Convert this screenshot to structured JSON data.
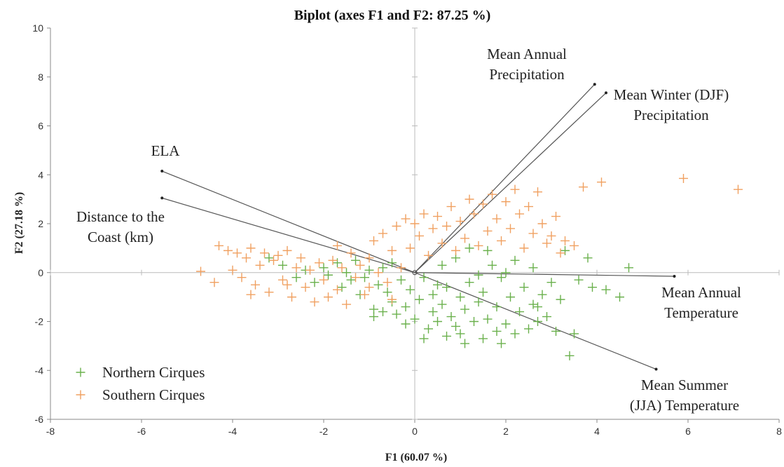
{
  "chart_data": {
    "type": "scatter",
    "title": "Biplot (axes F1 and F2: 87.25 %)",
    "xlabel": "F1 (60.07 %)",
    "ylabel": "F2 (27.18 %)",
    "xlim": [
      -8,
      8
    ],
    "ylim": [
      -6,
      10
    ],
    "xticks": [
      -8,
      -6,
      -4,
      -2,
      0,
      2,
      4,
      6,
      8
    ],
    "yticks": [
      -6,
      -4,
      -2,
      0,
      2,
      4,
      6,
      8,
      10
    ],
    "colors": {
      "northern": "#6ab04c",
      "southern": "#f0a060",
      "vector": "#555555"
    },
    "legend": {
      "placement": "bottom-left",
      "entries": [
        {
          "name": "Northern Cirques",
          "color": "#6ab04c"
        },
        {
          "name": "Southern Cirques",
          "color": "#f0a060"
        }
      ]
    },
    "vectors": [
      {
        "lines": [
          "Mean Annual",
          "Precipitation"
        ],
        "x": 3.95,
        "y": 7.7
      },
      {
        "lines": [
          "Mean Winter (DJF)",
          "Precipitation"
        ],
        "x": 4.2,
        "y": 7.35
      },
      {
        "lines": [
          "ELA"
        ],
        "x": -5.55,
        "y": 4.15
      },
      {
        "lines": [
          "Distance to the",
          "Coast (km)"
        ],
        "x": -5.55,
        "y": 3.05
      },
      {
        "lines": [
          "Mean Annual",
          "Temperature"
        ],
        "x": 5.7,
        "y": -0.15
      },
      {
        "lines": [
          "Mean Summer",
          "(JJA) Temperature"
        ],
        "x": 5.3,
        "y": -3.95
      }
    ],
    "series": [
      {
        "name": "Northern Cirques",
        "points": [
          [
            -3.2,
            0.6
          ],
          [
            -2.9,
            0.3
          ],
          [
            -2.6,
            -0.2
          ],
          [
            -2.4,
            0.1
          ],
          [
            -2.2,
            -0.4
          ],
          [
            -2.0,
            0.2
          ],
          [
            -1.9,
            -0.1
          ],
          [
            -1.7,
            0.4
          ],
          [
            -1.6,
            -0.6
          ],
          [
            -1.5,
            0.0
          ],
          [
            -1.4,
            -0.3
          ],
          [
            -1.3,
            0.5
          ],
          [
            -1.2,
            -0.9
          ],
          [
            -1.1,
            -0.2
          ],
          [
            -1.0,
            0.1
          ],
          [
            -0.9,
            -1.5
          ],
          [
            -0.9,
            -1.8
          ],
          [
            -0.8,
            -0.5
          ],
          [
            -0.7,
            0.2
          ],
          [
            -0.7,
            -1.6
          ],
          [
            -0.6,
            -0.8
          ],
          [
            -0.5,
            -1.2
          ],
          [
            -0.5,
            0.4
          ],
          [
            -0.4,
            -1.7
          ],
          [
            -0.3,
            -0.3
          ],
          [
            -0.2,
            -1.4
          ],
          [
            -0.1,
            -0.7
          ],
          [
            0.0,
            -1.9
          ],
          [
            0.1,
            -1.1
          ],
          [
            0.2,
            -0.2
          ],
          [
            0.3,
            -2.3
          ],
          [
            0.4,
            -1.6
          ],
          [
            0.4,
            -0.9
          ],
          [
            0.5,
            -2.0
          ],
          [
            0.6,
            -1.3
          ],
          [
            0.7,
            -2.6
          ],
          [
            0.7,
            -0.6
          ],
          [
            0.8,
            -1.8
          ],
          [
            0.9,
            -2.2
          ],
          [
            1.0,
            -1.0
          ],
          [
            1.0,
            -2.5
          ],
          [
            1.1,
            -1.5
          ],
          [
            1.2,
            -0.4
          ],
          [
            1.3,
            -2.0
          ],
          [
            1.4,
            -1.2
          ],
          [
            1.5,
            -2.7
          ],
          [
            1.5,
            -0.8
          ],
          [
            1.6,
            -1.9
          ],
          [
            1.7,
            0.3
          ],
          [
            1.8,
            -1.4
          ],
          [
            1.8,
            -2.4
          ],
          [
            1.9,
            -0.2
          ],
          [
            2.0,
            -2.1
          ],
          [
            2.1,
            -1.0
          ],
          [
            2.2,
            0.5
          ],
          [
            2.2,
            -2.5
          ],
          [
            2.3,
            -1.6
          ],
          [
            2.4,
            -0.6
          ],
          [
            2.5,
            -2.3
          ],
          [
            2.6,
            0.2
          ],
          [
            2.6,
            -1.3
          ],
          [
            2.7,
            -2.0
          ],
          [
            2.8,
            -0.9
          ],
          [
            2.9,
            -1.8
          ],
          [
            3.0,
            -0.4
          ],
          [
            3.1,
            -2.4
          ],
          [
            3.2,
            -1.1
          ],
          [
            3.3,
            0.9
          ],
          [
            3.4,
            -3.4
          ],
          [
            3.5,
            -2.5
          ],
          [
            3.6,
            -0.3
          ],
          [
            3.8,
            0.6
          ],
          [
            3.9,
            -0.6
          ],
          [
            4.2,
            -0.7
          ],
          [
            4.5,
            -1.0
          ],
          [
            4.7,
            0.2
          ],
          [
            1.6,
            0.9
          ],
          [
            1.2,
            1.0
          ],
          [
            0.9,
            0.6
          ],
          [
            2.0,
            0.0
          ],
          [
            1.4,
            -0.1
          ],
          [
            0.6,
            0.3
          ],
          [
            0.2,
            -2.7
          ],
          [
            -0.2,
            -2.1
          ],
          [
            1.9,
            -2.9
          ],
          [
            2.7,
            -1.4
          ],
          [
            1.1,
            -2.9
          ],
          [
            0.5,
            -0.5
          ]
        ]
      },
      {
        "name": "Southern Cirques",
        "points": [
          [
            -4.7,
            0.05
          ],
          [
            -4.3,
            1.1
          ],
          [
            -4.1,
            0.9
          ],
          [
            -4.0,
            0.1
          ],
          [
            -3.9,
            0.8
          ],
          [
            -3.8,
            -0.2
          ],
          [
            -3.7,
            0.6
          ],
          [
            -3.6,
            1.0
          ],
          [
            -3.5,
            -0.5
          ],
          [
            -3.4,
            0.3
          ],
          [
            -3.3,
            0.8
          ],
          [
            -3.2,
            -0.8
          ],
          [
            -3.1,
            0.5
          ],
          [
            -3.0,
            0.7
          ],
          [
            -2.9,
            -0.3
          ],
          [
            -2.8,
            0.9
          ],
          [
            -2.7,
            -1.0
          ],
          [
            -2.6,
            0.2
          ],
          [
            -2.5,
            0.6
          ],
          [
            -2.4,
            -0.6
          ],
          [
            -2.3,
            0.1
          ],
          [
            -2.2,
            -1.2
          ],
          [
            -2.1,
            0.4
          ],
          [
            -2.0,
            -0.3
          ],
          [
            -1.9,
            -1.0
          ],
          [
            -1.8,
            0.5
          ],
          [
            -1.7,
            -0.7
          ],
          [
            -1.6,
            0.2
          ],
          [
            -1.5,
            -1.3
          ],
          [
            -1.4,
            0.8
          ],
          [
            -1.3,
            -0.2
          ],
          [
            -1.2,
            0.3
          ],
          [
            -1.1,
            -0.9
          ],
          [
            -1.0,
            0.6
          ],
          [
            -0.9,
            1.3
          ],
          [
            -0.8,
            0.0
          ],
          [
            -0.7,
            1.6
          ],
          [
            -0.6,
            -0.4
          ],
          [
            -0.5,
            0.9
          ],
          [
            -0.4,
            1.9
          ],
          [
            -0.3,
            0.2
          ],
          [
            -0.2,
            2.2
          ],
          [
            -0.1,
            1.0
          ],
          [
            0.0,
            2.0
          ],
          [
            0.1,
            1.5
          ],
          [
            0.2,
            2.4
          ],
          [
            0.3,
            0.7
          ],
          [
            0.4,
            1.8
          ],
          [
            0.5,
            2.3
          ],
          [
            0.6,
            1.2
          ],
          [
            0.7,
            1.9
          ],
          [
            0.8,
            2.7
          ],
          [
            0.9,
            0.9
          ],
          [
            1.0,
            2.1
          ],
          [
            1.1,
            1.4
          ],
          [
            1.2,
            3.0
          ],
          [
            1.3,
            2.4
          ],
          [
            1.4,
            1.1
          ],
          [
            1.5,
            2.8
          ],
          [
            1.6,
            1.7
          ],
          [
            1.7,
            3.2
          ],
          [
            1.8,
            2.2
          ],
          [
            1.9,
            1.3
          ],
          [
            2.0,
            2.9
          ],
          [
            2.1,
            1.8
          ],
          [
            2.2,
            3.4
          ],
          [
            2.3,
            2.4
          ],
          [
            2.4,
            1.0
          ],
          [
            2.5,
            2.7
          ],
          [
            2.6,
            1.6
          ],
          [
            2.7,
            3.3
          ],
          [
            2.8,
            2.0
          ],
          [
            2.9,
            1.2
          ],
          [
            3.0,
            1.5
          ],
          [
            3.1,
            2.3
          ],
          [
            3.2,
            0.8
          ],
          [
            3.3,
            1.3
          ],
          [
            3.5,
            1.1
          ],
          [
            3.7,
            3.5
          ],
          [
            4.1,
            3.7
          ],
          [
            5.9,
            3.85
          ],
          [
            7.1,
            3.4
          ],
          [
            -4.4,
            -0.4
          ],
          [
            -3.6,
            -0.9
          ],
          [
            -2.8,
            -0.5
          ],
          [
            -1.7,
            1.1
          ],
          [
            -1.0,
            -0.6
          ],
          [
            -0.5,
            -1.1
          ]
        ]
      }
    ]
  }
}
